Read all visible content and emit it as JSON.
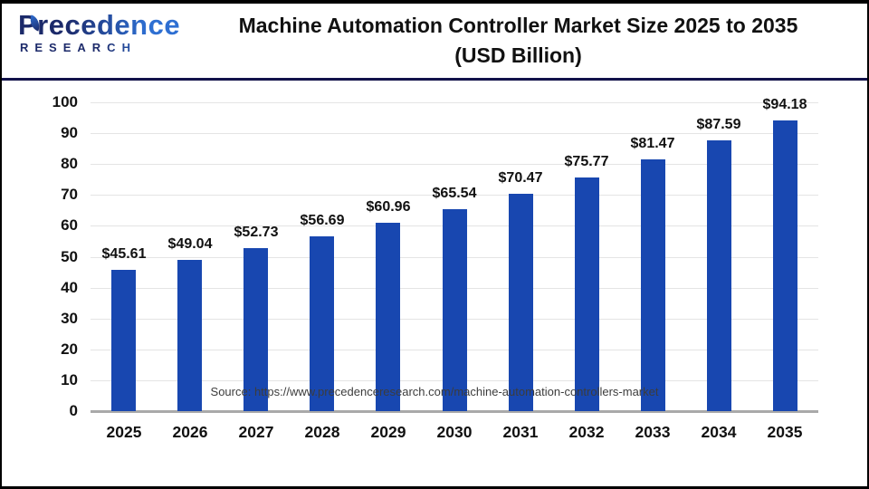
{
  "header": {
    "logo_line1": "Precedence",
    "logo_line2": "RESEARCH",
    "title_line1": "Machine Automation Controller Market Size 2025 to 2035",
    "title_line2": "(USD Billion)"
  },
  "chart_data": {
    "type": "bar",
    "title": "Machine Automation Controller Market Size 2025 to 2035 (USD Billion)",
    "categories": [
      "2025",
      "2026",
      "2027",
      "2028",
      "2029",
      "2030",
      "2031",
      "2032",
      "2033",
      "2034",
      "2035"
    ],
    "values": [
      45.61,
      49.04,
      52.73,
      56.69,
      60.96,
      65.54,
      70.47,
      75.77,
      81.47,
      87.59,
      94.18
    ],
    "value_prefix": "$",
    "xlabel": "",
    "ylabel": "",
    "ylim": [
      0,
      100
    ],
    "ytick_step": 10,
    "grid": true,
    "legend": "none"
  },
  "footer": {
    "source": "Source: https://www.precedenceresearch.com/machine-automation-controllers-market"
  },
  "colors": {
    "bar": "#1847b0",
    "gridline": "#e4e4e4",
    "axis_line": "#a9a9a9",
    "divider": "#12124a",
    "logo_navy": "#1c2a6a",
    "logo_blue": "#2e6fd2",
    "text": "#111111",
    "source_text": "#3c3c3c"
  }
}
